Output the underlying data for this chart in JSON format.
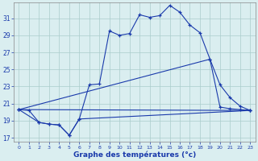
{
  "bg_color": "#daeef0",
  "line_color": "#1a3aab",
  "grid_color": "#aacccc",
  "ylabel_ticks": [
    17,
    19,
    21,
    23,
    25,
    27,
    29,
    31
  ],
  "xlabel_ticks": [
    0,
    1,
    2,
    3,
    4,
    5,
    6,
    7,
    8,
    9,
    10,
    11,
    12,
    13,
    14,
    15,
    16,
    17,
    18,
    19,
    20,
    21,
    22,
    23
  ],
  "xlabel": "Graphe des températures (°c)",
  "ylim": [
    16.5,
    32.8
  ],
  "xlim": [
    -0.5,
    23.5
  ],
  "series": {
    "line1_main": {
      "x": [
        0,
        1,
        2,
        3,
        4,
        5,
        6,
        7,
        8,
        9,
        10,
        11,
        12,
        13,
        14,
        15,
        16,
        17,
        18,
        19,
        20,
        21,
        22,
        23
      ],
      "y": [
        20.3,
        20.2,
        18.8,
        18.6,
        18.5,
        17.3,
        19.2,
        23.2,
        23.3,
        29.5,
        29.0,
        29.2,
        31.4,
        31.1,
        31.3,
        32.5,
        31.7,
        30.2,
        29.3,
        26.2,
        20.6,
        20.4,
        20.3,
        20.2
      ]
    },
    "line2_flat": {
      "x": [
        0,
        23
      ],
      "y": [
        20.3,
        20.2
      ]
    },
    "line3_dip": {
      "x": [
        0,
        2,
        3,
        4,
        5,
        6,
        23
      ],
      "y": [
        20.3,
        18.8,
        18.6,
        18.5,
        17.3,
        19.2,
        20.2
      ]
    },
    "line4_rising": {
      "x": [
        0,
        19,
        20,
        21,
        22,
        23
      ],
      "y": [
        20.3,
        26.2,
        23.2,
        21.7,
        20.7,
        20.2
      ]
    }
  }
}
